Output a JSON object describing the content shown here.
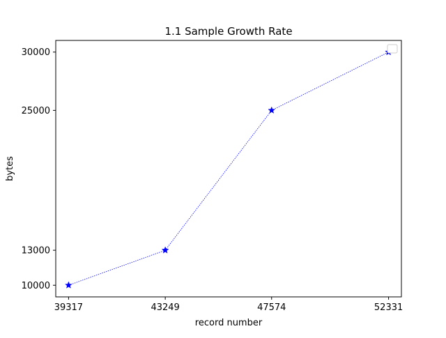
{
  "chart_data": {
    "type": "line",
    "title": "1.1 Sample Growth Rate",
    "xlabel": "record number",
    "ylabel": "bytes",
    "x": [
      39317,
      43249,
      47574,
      52331
    ],
    "x_ticks": [
      "39317",
      "43249",
      "47574",
      "52331"
    ],
    "y_ticks": [
      "10000",
      "13000",
      "25000",
      "30000"
    ],
    "xlim": [
      38795.3,
      52852.7
    ],
    "ylim": [
      9000,
      31000
    ],
    "series": [
      {
        "values": [
          10000,
          13000,
          25000,
          30000
        ],
        "color": "#0000ff",
        "line_style": "dotted",
        "marker": "star"
      }
    ],
    "legend": {
      "placement": "top-right",
      "entries": []
    },
    "grid": false
  }
}
